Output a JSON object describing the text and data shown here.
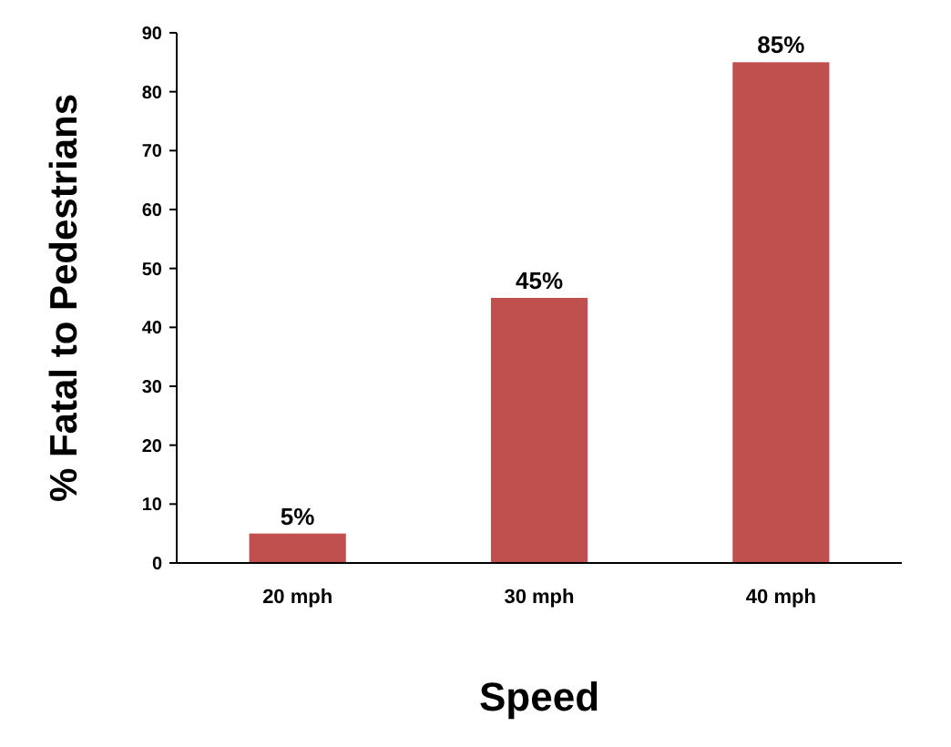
{
  "chart_data": {
    "type": "bar",
    "xlabel": "Speed",
    "ylabel": "% Fatal to Pedestrians",
    "categories": [
      "20 mph",
      "30 mph",
      "40 mph"
    ],
    "values": [
      5,
      45,
      85
    ],
    "color": "#c0504d",
    "value_labels": [
      "5%",
      "45%",
      "85%"
    ],
    "ylim": [
      0,
      90
    ],
    "yticks": [
      0,
      10,
      20,
      30,
      40,
      50,
      60,
      70,
      80,
      90
    ],
    "grid": false
  }
}
